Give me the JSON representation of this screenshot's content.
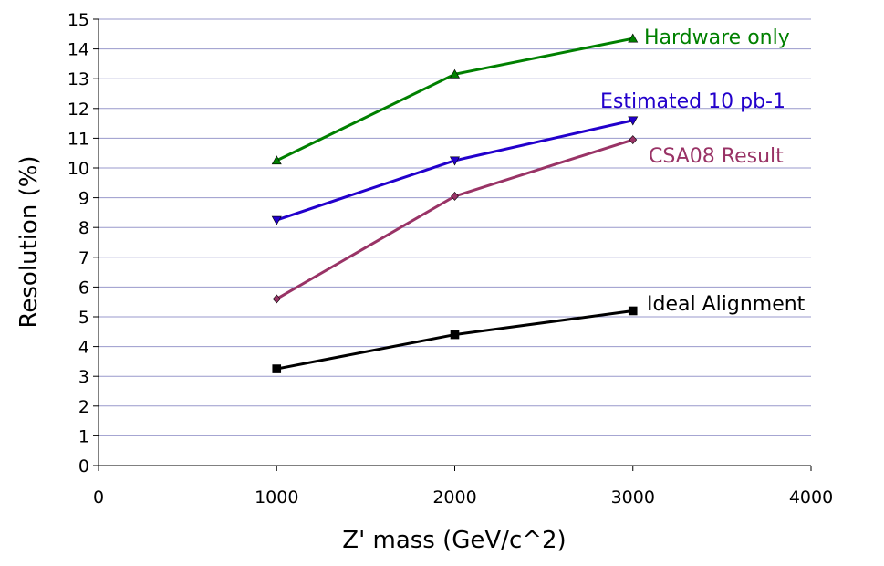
{
  "chart_data": {
    "type": "line",
    "title": "",
    "xlabel": "Z' mass (GeV/c^2)",
    "ylabel": "Resolution (%)",
    "xlim": [
      0,
      4000
    ],
    "ylim": [
      0,
      15
    ],
    "x_ticks": [
      0,
      1000,
      2000,
      3000,
      4000
    ],
    "y_ticks": [
      0,
      1,
      2,
      3,
      4,
      5,
      6,
      7,
      8,
      9,
      10,
      11,
      12,
      13,
      14,
      15
    ],
    "grid": "horizontal",
    "grid_color": "#9999cc",
    "legend": "inline labels",
    "series": [
      {
        "name": "Hardware only",
        "color": "#008000",
        "marker": "triangle-up",
        "x": [
          1000,
          2000,
          3000
        ],
        "y": [
          10.25,
          13.15,
          14.35
        ]
      },
      {
        "name": "Estimated 10 pb-1",
        "color": "#2200cc",
        "marker": "triangle-down",
        "x": [
          1000,
          2000,
          3000
        ],
        "y": [
          8.25,
          10.25,
          11.6
        ]
      },
      {
        "name": "CSA08 Result",
        "color": "#993366",
        "marker": "diamond",
        "x": [
          1000,
          2000,
          3000
        ],
        "y": [
          5.6,
          9.05,
          10.95
        ]
      },
      {
        "name": "Ideal Alignment",
        "color": "#000000",
        "marker": "square",
        "x": [
          1000,
          2000,
          3000
        ],
        "y": [
          3.25,
          4.4,
          5.2
        ]
      }
    ]
  }
}
